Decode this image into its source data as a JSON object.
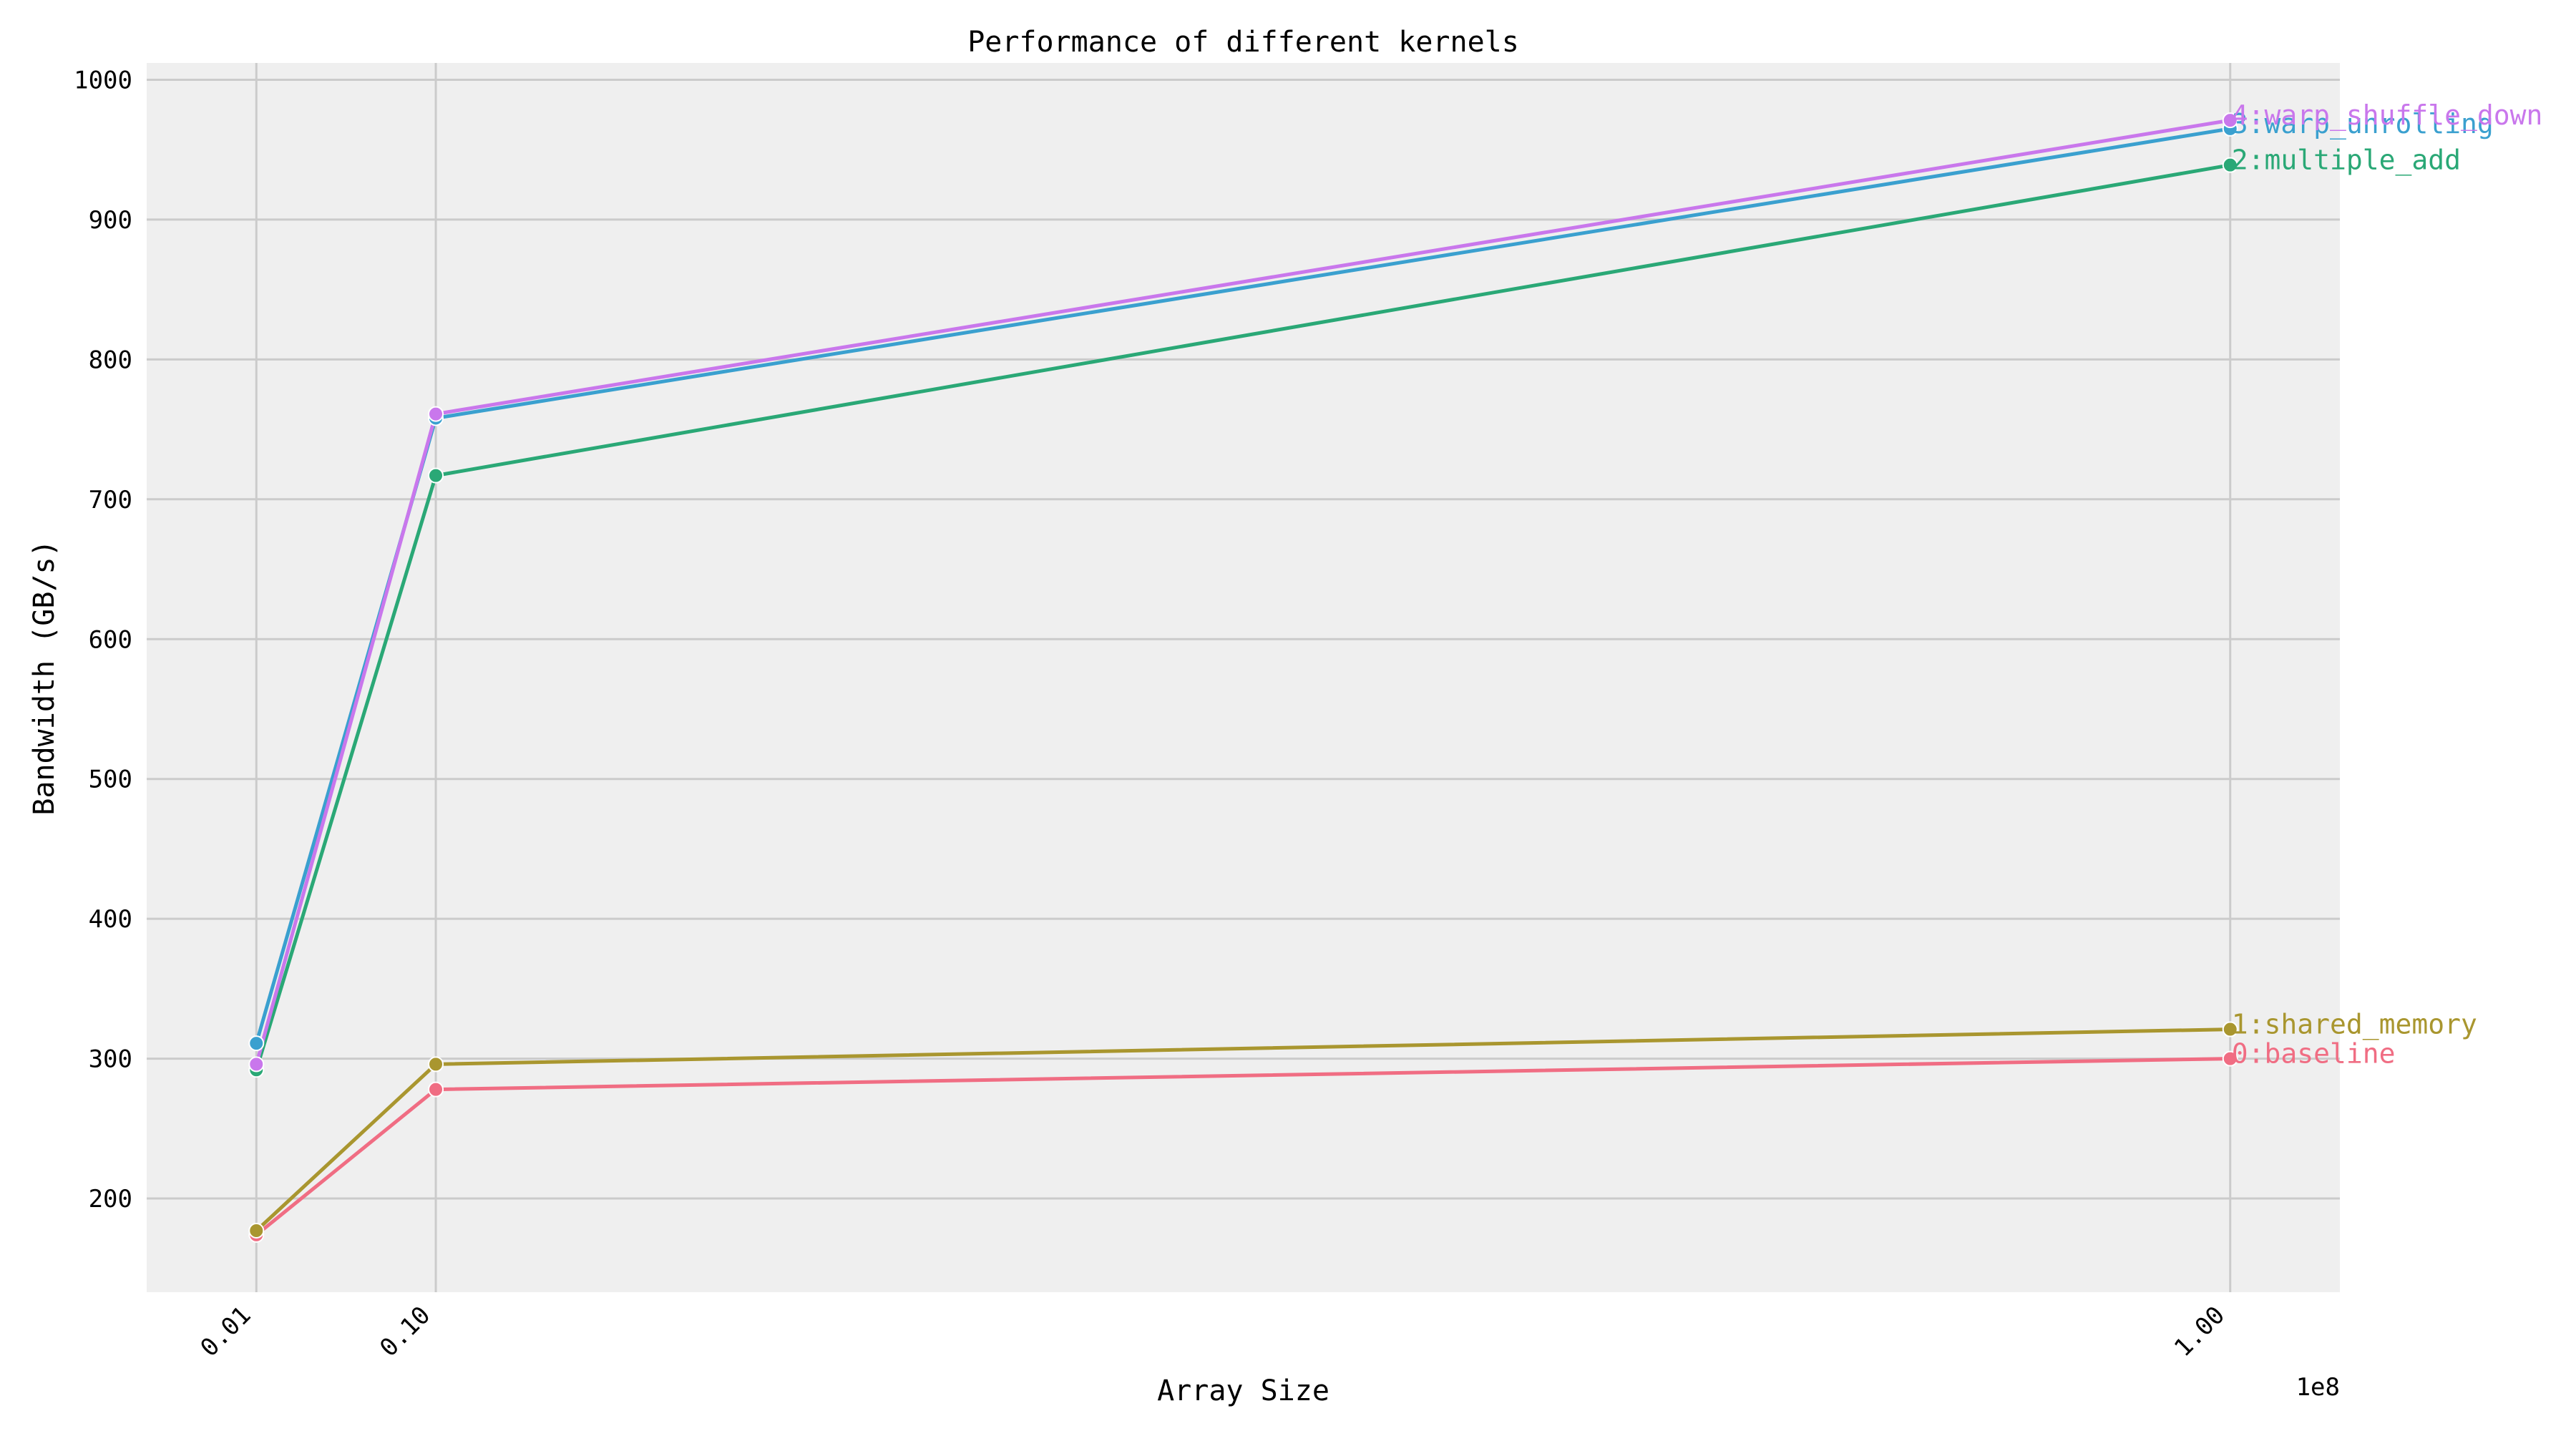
{
  "chart_data": {
    "type": "line",
    "title": "Performance of different kernels",
    "xlabel": "Array Size",
    "ylabel": "Bandwidth (GB/s)",
    "x_offset_label": "1e8",
    "x": [
      0.01,
      0.1,
      1.0
    ],
    "x_ticks": [
      0.01,
      0.1,
      1.0
    ],
    "x_tick_labels": [
      "0.01",
      "0.10",
      "1.00"
    ],
    "xlim": [
      -0.045,
      1.055
    ],
    "y_ticks": [
      200,
      300,
      400,
      500,
      600,
      700,
      800,
      900,
      1000
    ],
    "y_tick_labels": [
      "200",
      "300",
      "400",
      "500",
      "600",
      "700",
      "800",
      "900",
      "1000"
    ],
    "ylim": [
      133,
      1012
    ],
    "grid": true,
    "background": "#efefef",
    "series": [
      {
        "name": "0:baseline",
        "color": "#f06d83",
        "values": [
          174,
          278,
          300
        ]
      },
      {
        "name": "1:shared_memory",
        "color": "#a9962f",
        "values": [
          177,
          296,
          321
        ]
      },
      {
        "name": "2:multiple_add",
        "color": "#2aa876",
        "values": [
          292,
          717,
          939
        ]
      },
      {
        "name": "3:warp_unrolling",
        "color": "#3aa0cf",
        "values": [
          311,
          758,
          965
        ]
      },
      {
        "name": "4:warp_shuffle_down",
        "color": "#c977ec",
        "values": [
          296,
          761,
          971
        ]
      }
    ]
  }
}
